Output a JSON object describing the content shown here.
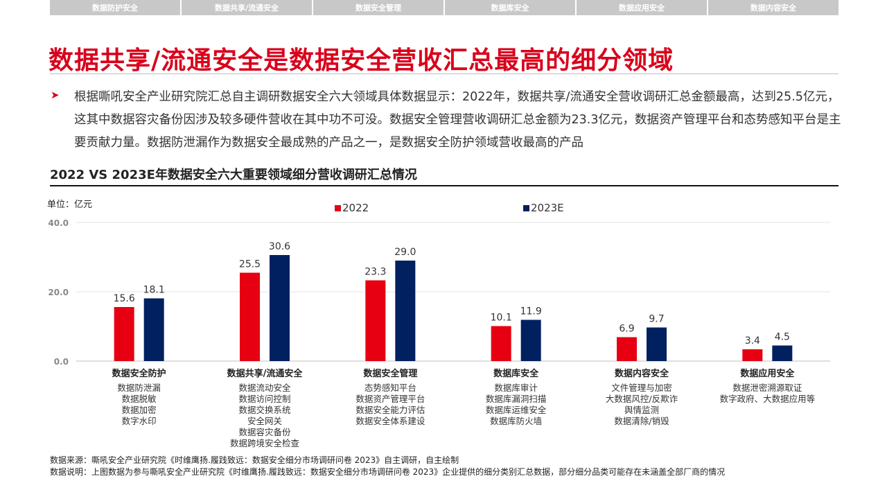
{
  "nav": {
    "tabs": [
      "数据防护安全",
      "数据共享/流通安全",
      "数据安全管理",
      "数据库安全",
      "数据应用安全",
      "数据内容安全"
    ]
  },
  "page_title": "数据共享/流通安全是数据安全营收汇总最高的细分领域",
  "summary": "根据嘶吼安全产业研究院汇总自主调研数据安全六大领域具体数据显示：2022年，数据共享/流通安全营收调研汇总金额最高，达到25.5亿元，这其中数据容灾备份因涉及较多硬件营收在其中功不可没。数据安全管理营收调研汇总金额为23.3亿元，数据资产管理平台和态势感知平台是主要贡献力量。数据防泄漏作为数据安全最成熟的产品之一，是数据安全防护领域营收最高的产品",
  "chart_title": "2022 VS 2023E年数据安全六大重要领域细分营收调研汇总情况",
  "unit_label": "单位：亿元",
  "colors": {
    "accent": "#d9001b",
    "series_2022": "#e60012",
    "series_2023": "#002060"
  },
  "chart_data": {
    "type": "bar",
    "categories": [
      "数据安全防护",
      "数据共享/流通安全",
      "数据安全管理",
      "数据库安全",
      "数据内容安全",
      "数据应用安全"
    ],
    "sub_items": [
      [
        "数据防泄漏",
        "数据脱敏",
        "数据加密",
        "数字水印"
      ],
      [
        "数据流动安全",
        "数据访问控制",
        "数据交换系统",
        "安全网关",
        "数据容灾备份",
        "数据跨境安全检查"
      ],
      [
        "态势感知平台",
        "数据资产管理平台",
        "数据安全能力评估",
        "数据安全体系建设"
      ],
      [
        "数据库审计",
        "数据库漏洞扫描",
        "数据库运维安全",
        "数据库防火墙"
      ],
      [
        "文件管理与加密",
        "大数据风控/反欺诈",
        "舆情监测",
        "数据清除/销毁"
      ],
      [
        "数据泄密溯源取证",
        "数字政府、大数据应用等"
      ]
    ],
    "series": [
      {
        "name": "2022",
        "values": [
          15.6,
          25.5,
          23.3,
          10.1,
          6.9,
          3.4
        ]
      },
      {
        "name": "2023E",
        "values": [
          18.1,
          30.6,
          29.0,
          11.9,
          9.7,
          4.5
        ]
      }
    ],
    "ylim": [
      0,
      40
    ],
    "yticks": [
      "0.0",
      "20.0",
      "40.0"
    ],
    "legend_position": "top",
    "grid": true
  },
  "footnotes": {
    "source": "数据来源：嘶吼安全产业研究院《时维鹰扬.履践致远：数据安全细分市场调研问卷 2023》自主调研，自主绘制",
    "note": "数据说明：上图数据为参与嘶吼安全产业研究院《时维鹰扬.履践致远：数据安全细分市场调研问卷 2023》企业提供的细分类别汇总数据，部分细分品类可能存在未涵盖全部厂商的情况"
  }
}
